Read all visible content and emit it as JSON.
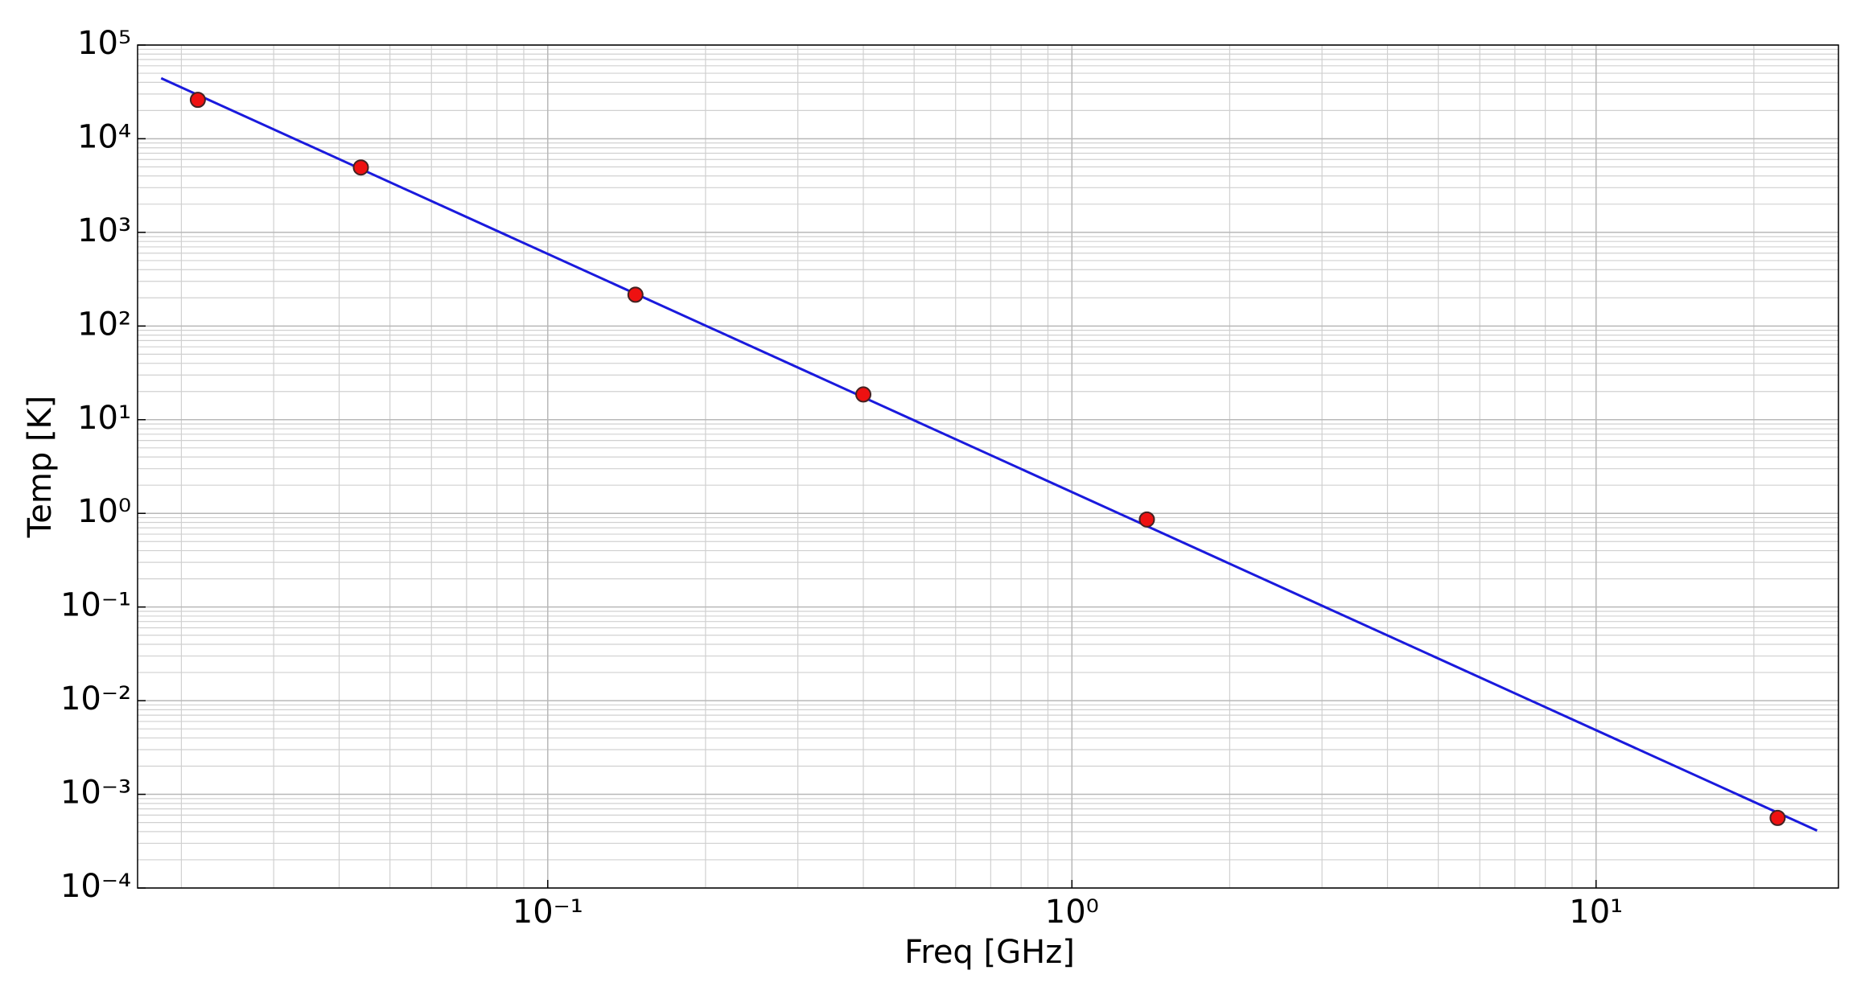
{
  "chart_data": {
    "type": "scatter",
    "x_label": "Freq [GHz]",
    "y_label": "Temp [K]",
    "x_scale": "log",
    "y_scale": "log",
    "grid": true,
    "minor_grid": true,
    "xlim": [
      0.0165,
      29
    ],
    "ylim": [
      0.0001,
      100000
    ],
    "xticks": [
      {
        "value": 0.1,
        "label": "10⁻¹"
      },
      {
        "value": 1,
        "label": "10⁰"
      },
      {
        "value": 10,
        "label": "10¹"
      }
    ],
    "yticks": [
      {
        "value": 0.0001,
        "label": "10⁻⁴"
      },
      {
        "value": 0.001,
        "label": "10⁻³"
      },
      {
        "value": 0.01,
        "label": "10⁻²"
      },
      {
        "value": 0.1,
        "label": "10⁻¹"
      },
      {
        "value": 1,
        "label": "10⁰"
      },
      {
        "value": 10,
        "label": "10¹"
      },
      {
        "value": 100,
        "label": "10²"
      },
      {
        "value": 1000,
        "label": "10³"
      },
      {
        "value": 10000,
        "label": "10⁴"
      },
      {
        "value": 100000,
        "label": "10⁵"
      }
    ],
    "points": {
      "color": "#ee1111",
      "edge_color": "#442222",
      "x": [
        0.0215,
        0.044,
        0.147,
        0.4,
        1.39,
        22.2
      ],
      "values": [
        26000,
        4930,
        216,
        18.6,
        0.86,
        0.00056
      ]
    },
    "fit": {
      "color": "#1a1add",
      "x": [
        0.0183,
        26.4
      ],
      "values": [
        44200,
        0.00041
      ]
    }
  }
}
